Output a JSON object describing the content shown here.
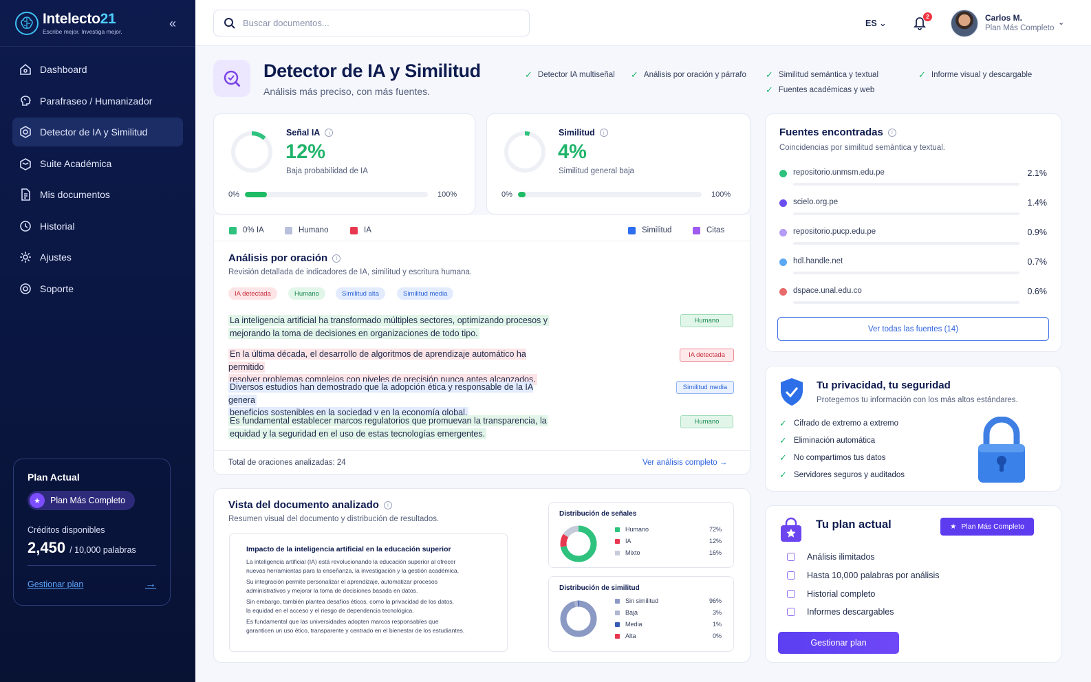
{
  "brand": {
    "name_main": "Intelecto",
    "name_accent": "21",
    "tagline": "Escribe mejor. Investiga mejor."
  },
  "sidebar": {
    "collapse_icon": "«",
    "items": [
      {
        "label": "Dashboard",
        "icon": "home-icon"
      },
      {
        "label": "Parafraseo / Humanizador",
        "icon": "brain-icon"
      },
      {
        "label": "Detector de IA y Similitud",
        "icon": "detector-icon",
        "active": true
      },
      {
        "label": "Suite Académica",
        "icon": "cap-icon"
      },
      {
        "label": "Mis documentos",
        "icon": "document-icon"
      },
      {
        "label": "Historial",
        "icon": "history-icon"
      },
      {
        "label": "Ajustes",
        "icon": "gear-icon"
      },
      {
        "label": "Soporte",
        "icon": "support-icon"
      }
    ],
    "plan": {
      "title": "Plan Actual",
      "badge": "Plan Más Completo",
      "credits_label": "Créditos disponibles",
      "credits_value": "2,450",
      "credits_suffix": "/ 10,000 palabras",
      "manage": "Gestionar plan"
    }
  },
  "topbar": {
    "search_placeholder": "Buscar documentos...",
    "lang": "ES",
    "notifications": "2",
    "user_name": "Carlos M.",
    "user_plan": "Plan Más Completo"
  },
  "header": {
    "title": "Detector de IA y Similitud",
    "subtitle": "Análisis más preciso, con más fuentes.",
    "features": [
      "Detector IA multiseñal",
      "Análisis por oración y párrafo",
      "Similitud semántica y textual",
      "Informe visual y descargable",
      "Fuentes académicas y web"
    ]
  },
  "ai_signal": {
    "label": "Señal IA",
    "value": "12%",
    "desc": "Baja probabilidad de IA",
    "min": "0%",
    "max": "100%",
    "fraction": 0.12
  },
  "similarity": {
    "label": "Similitud",
    "value": "4%",
    "desc": "Similitud general baja",
    "min": "0%",
    "max": "100%",
    "fraction": 0.04
  },
  "legend": {
    "zero_ai": "0% IA",
    "human": "Humano",
    "ai": "IA",
    "similarity": "Similitud",
    "citations": "Citas"
  },
  "analysis": {
    "title": "Análisis por oración",
    "subtitle": "Revisión detallada de indicadores de IA, similitud y escritura humana.",
    "chips": [
      "IA detectada",
      "Humano",
      "Similitud alta",
      "Similitud media"
    ],
    "sentences": [
      {
        "line1": "La inteligencia artificial ha transformado múltiples sectores, optimizando procesos y",
        "line2": "mejorando la toma de decisiones en organizaciones de todo tipo.",
        "tag": "Humano"
      },
      {
        "line1": "En la última década, el desarrollo de algoritmos de aprendizaje automático ha permitido",
        "line2": "resolver problemas complejos con niveles de precisión nunca antes alcanzados.",
        "tag": "IA detectada"
      },
      {
        "line1": "Diversos estudios han demostrado que la adopción ética y responsable de la IA genera",
        "line2": "beneficios sostenibles en la sociedad y en la economía global.",
        "tag": "Similitud media"
      },
      {
        "line1": "Es fundamental establecer marcos regulatorios que promuevan la transparencia, la",
        "line2": "equidad y la seguridad en el uso de estas tecnologías emergentes.",
        "tag": "Humano"
      }
    ],
    "total": "Total de oraciones analizadas: 24",
    "link": "Ver análisis completo"
  },
  "doc_view": {
    "title": "Vista del documento analizado",
    "subtitle": "Resumen visual del documento y distribución de resultados.",
    "doc_title": "Impacto de la inteligencia artificial en la educación superior",
    "paragraphs": [
      [
        "La inteligencia artificial (IA) está revolucionando la educación superior al ofrecer",
        "nuevas herramientas para la enseñanza, la investigación y la gestión académica."
      ],
      [
        "Su integración permite personalizar el aprendizaje, automatizar procesos",
        "administrativos y mejorar la toma de decisiones basada en datos."
      ],
      [
        "Sin embargo, también plantea desafíos éticos, como la privacidad de los datos,",
        "la equidad en el acceso y el riesgo de dependencia tecnológica."
      ],
      [
        "Es fundamental que las universidades adopten marcos responsables que",
        "garanticen un uso ético, transparente y centrado en el bienestar de los estudiantes."
      ]
    ],
    "signals": {
      "title": "Distribución de señales",
      "rows": [
        {
          "label": "Humano",
          "pct": "72%",
          "value": 72,
          "color": "#2ec27e"
        },
        {
          "label": "IA",
          "pct": "12%",
          "value": 12,
          "color": "#e8384f"
        },
        {
          "label": "Mixto",
          "pct": "16%",
          "value": 16,
          "color": "#c7ccda"
        }
      ]
    },
    "sim": {
      "title": "Distribución de similitud",
      "rows": [
        {
          "label": "Sin similitud",
          "pct": "96%",
          "value": 96,
          "color": "#8a9ac4"
        },
        {
          "label": "Baja",
          "pct": "3%",
          "value": 3,
          "color": "#aeb6d0"
        },
        {
          "label": "Media",
          "pct": "1%",
          "value": 1,
          "color": "#3a5bb8"
        },
        {
          "label": "Alta",
          "pct": "0%",
          "value": 0,
          "color": "#e8384f"
        }
      ]
    }
  },
  "sources": {
    "title": "Fuentes encontradas",
    "subtitle": "Coincidencias por similitud semántica y textual.",
    "items": [
      {
        "name": "repositorio.unmsm.edu.pe",
        "pct": "2.1%",
        "color": "#2ec27e"
      },
      {
        "name": "scielo.org.pe",
        "pct": "1.4%",
        "color": "#6b4ef0"
      },
      {
        "name": "repositorio.pucp.edu.pe",
        "pct": "0.9%",
        "color": "#b49cf5"
      },
      {
        "name": "hdl.handle.net",
        "pct": "0.7%",
        "color": "#5ba8f5"
      },
      {
        "name": "dspace.unal.edu.co",
        "pct": "0.6%",
        "color": "#e86a6a"
      }
    ],
    "button": "Ver todas las fuentes (14)"
  },
  "privacy": {
    "title": "Tu privacidad, tu seguridad",
    "subtitle": "Protegemos tu información con los más altos estándares.",
    "items": [
      "Cifrado de extremo a extremo",
      "Eliminación automática",
      "No compartimos tus datos",
      "Servidores seguros y auditados"
    ]
  },
  "my_plan": {
    "title": "Tu plan actual",
    "pill": "Plan Más Completo",
    "items": [
      "Análisis ilimitados",
      "Hasta 10,000 palabras por análisis",
      "Historial completo",
      "Informes descargables"
    ],
    "button": "Gestionar plan"
  }
}
